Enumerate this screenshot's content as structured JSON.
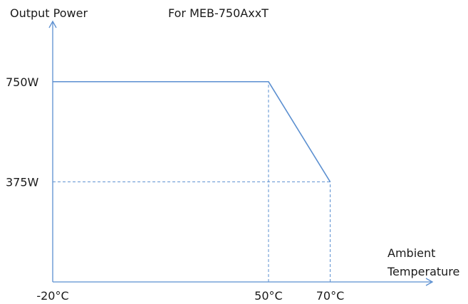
{
  "chart_data": {
    "type": "line",
    "title": "For MEB-750AxxT",
    "ylabel": "Output Power",
    "xlabel_lines": [
      "Ambient",
      "Temperature"
    ],
    "x_ticks": [
      {
        "value": -20,
        "label": "-20°C"
      },
      {
        "value": 50,
        "label": "50°C"
      },
      {
        "value": 70,
        "label": "70°C"
      }
    ],
    "y_ticks": [
      {
        "value": 750,
        "label": "750W"
      },
      {
        "value": 375,
        "label": "375W"
      }
    ],
    "series": [
      {
        "x": [
          -20,
          50,
          70
        ],
        "y": [
          750,
          750,
          375
        ]
      }
    ],
    "guides": [
      {
        "orientation": "vertical",
        "x": 50,
        "y_from": 0,
        "y_to": 750
      },
      {
        "orientation": "vertical",
        "x": 70,
        "y_from": 0,
        "y_to": 375
      },
      {
        "orientation": "horizontal",
        "y": 375,
        "x_from": -20,
        "x_to": 70
      }
    ],
    "xlim": [
      -20,
      102
    ],
    "ylim": [
      0,
      1000
    ],
    "grid": false,
    "colors": {
      "line": "#5b8fd0",
      "text": "#1a1a1a"
    }
  }
}
